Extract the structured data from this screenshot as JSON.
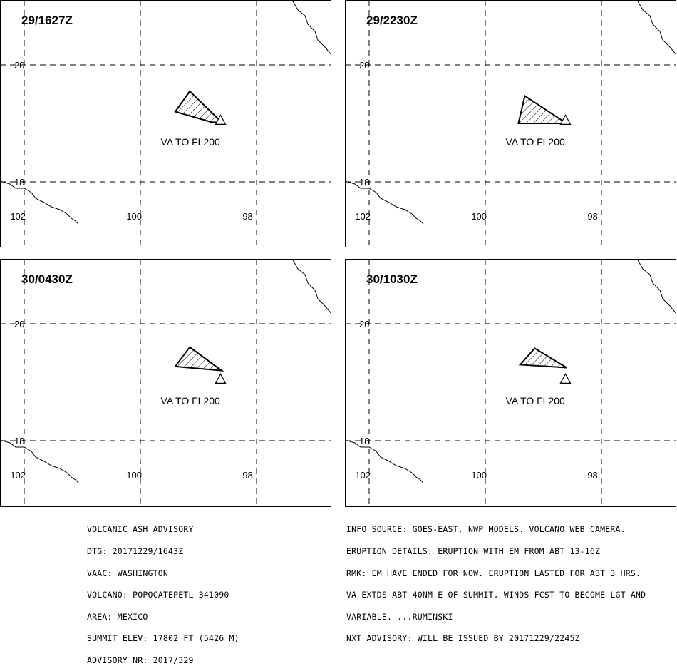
{
  "panels": [
    {
      "time": "29/1627Z",
      "va_label": "VA TO FL200",
      "lat_ticks": [
        "20",
        "18"
      ],
      "lon_ticks": [
        "-102",
        "-100",
        "-98"
      ],
      "ash_polygon": [
        [
          -99.4,
          19.2
        ],
        [
          -99.15,
          19.55
        ],
        [
          -98.6,
          19.02
        ],
        [
          -98.77,
          19.02
        ],
        [
          -99.4,
          19.2
        ]
      ]
    },
    {
      "time": "29/2230Z",
      "va_label": "VA TO FL200",
      "lat_ticks": [
        "20",
        "18"
      ],
      "lon_ticks": [
        "-102",
        "-100",
        "-98"
      ],
      "ash_polygon": [
        [
          -99.43,
          19.0
        ],
        [
          -99.32,
          19.47
        ],
        [
          -98.6,
          19.0
        ],
        [
          -99.43,
          19.0
        ]
      ]
    },
    {
      "time": "30/0430Z",
      "va_label": "VA TO FL200",
      "lat_ticks": [
        "20",
        "18"
      ],
      "lon_ticks": [
        "-102",
        "-100",
        "-98"
      ],
      "ash_polygon": [
        [
          -99.4,
          19.27
        ],
        [
          -99.15,
          19.6
        ],
        [
          -98.6,
          19.2
        ],
        [
          -99.4,
          19.27
        ]
      ]
    },
    {
      "time": "30/1030Z",
      "va_label": "VA TO FL200",
      "lat_ticks": [
        "20",
        "18"
      ],
      "lon_ticks": [
        "-102",
        "-100",
        "-98"
      ],
      "ash_polygon": [
        [
          -99.4,
          19.3
        ],
        [
          -99.15,
          19.58
        ],
        [
          -98.6,
          19.25
        ],
        [
          -99.4,
          19.3
        ]
      ]
    }
  ],
  "volcano": {
    "name": "POPOCATEPETL",
    "lon": -98.62,
    "lat": 19.02,
    "icon": "volcano-triangle-icon"
  },
  "advisory_left": [
    "VOLCANIC ASH ADVISORY",
    "DTG: 20171229/1643Z",
    "VAAC: WASHINGTON",
    "VOLCANO: POPOCATEPETL 341090",
    "AREA: MEXICO",
    "SUMMIT ELEV: 17802 FT (5426 M)",
    "ADVISORY NR: 2017/329"
  ],
  "advisory_right": [
    "INFO SOURCE: GOES-EAST. NWP MODELS. VOLCANO WEB CAMERA.",
    "ERUPTION DETAILS: ERUPTION WITH EM FROM ABT 13-16Z",
    "RMK: EM HAVE ENDED FOR NOW. ERUPTION LASTED FOR ABT 3 HRS.",
    "VA EXTDS ABT 40NM E OF SUMMIT. WINDS FCST TO BECOME LGT AND",
    "VARIABLE. ...RUMINSKI",
    "NXT ADVISORY: WILL BE ISSUED BY 20171229/2245Z"
  ]
}
